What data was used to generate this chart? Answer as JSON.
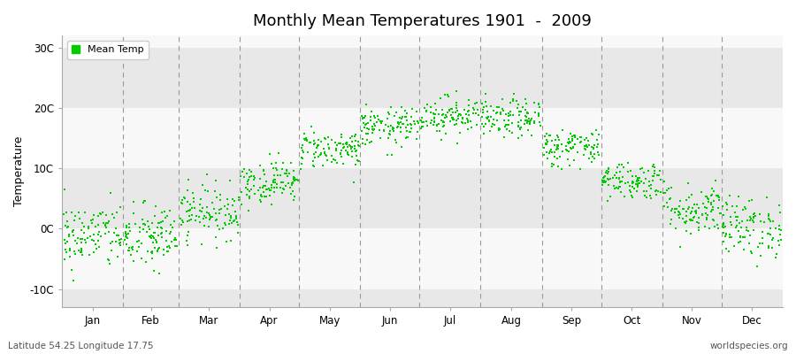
{
  "title": "Monthly Mean Temperatures 1901  -  2009",
  "ylabel": "Temperature",
  "xlabel_labels": [
    "Jan",
    "Feb",
    "Mar",
    "Apr",
    "May",
    "Jun",
    "Jul",
    "Aug",
    "Sep",
    "Oct",
    "Nov",
    "Dec"
  ],
  "bottom_left_text": "Latitude 54.25 Longitude 17.75",
  "bottom_right_text": "worldspecies.org",
  "legend_label": "Mean Temp",
  "ytick_labels": [
    "-10C",
    "0C",
    "10C",
    "20C",
    "30C"
  ],
  "ytick_values": [
    -10,
    0,
    10,
    20,
    30
  ],
  "ylim": [
    -13,
    32
  ],
  "dot_color": "#00cc00",
  "dot_size": 3.5,
  "background_color": "#ffffff",
  "plot_bg_color": "#ffffff",
  "dashed_line_color": "#999999",
  "years": 109,
  "monthly_means": [
    -1.2,
    -1.5,
    2.8,
    7.8,
    13.2,
    16.8,
    18.8,
    18.2,
    13.5,
    8.0,
    3.2,
    0.2
  ],
  "monthly_stds": [
    2.8,
    2.8,
    2.2,
    1.8,
    1.6,
    1.6,
    1.6,
    1.6,
    1.6,
    1.6,
    2.2,
    2.5
  ],
  "band_colors": [
    "#e8e8e8",
    "#f8f8f8"
  ],
  "month_days": [
    31,
    28,
    31,
    30,
    31,
    30,
    31,
    31,
    30,
    31,
    30,
    31
  ]
}
